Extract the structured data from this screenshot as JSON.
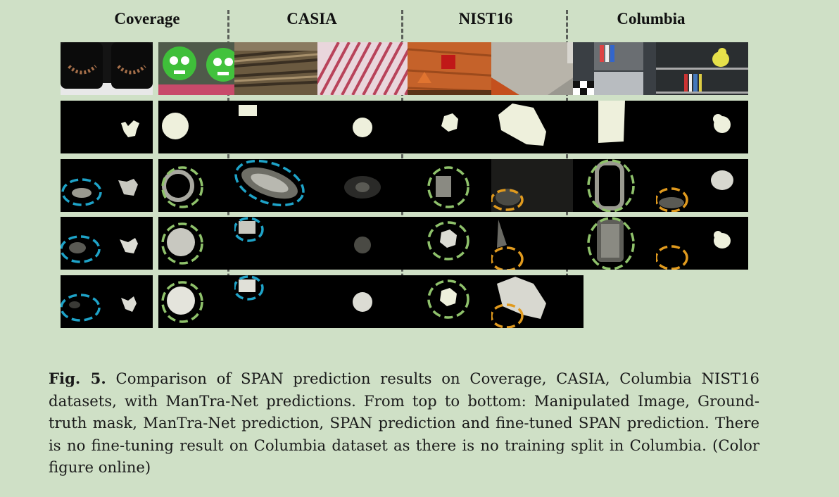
{
  "figure": {
    "columns": [
      "Coverage",
      "CASIA",
      "NIST16",
      "Columbia"
    ]
  },
  "caption": {
    "label": "Fig. 5.",
    "text": " Comparison of SPAN prediction results on Coverage, CASIA, Columbia NIST16 datasets, with ManTra-Net predictions. From top to bottom: Manipulated Image, Ground-truth mask, ManTra-Net prediction, SPAN prediction and fine-tuned SPAN prediction. There is no fine-tuning result on Columbia dataset as there is no training split in Columbia. (Color figure online)"
  },
  "colors": {
    "background": "#cfe0c6",
    "blue_circle": "#1ea3c8",
    "green_circle": "#8fc26b",
    "orange_circle": "#e09a1e"
  }
}
